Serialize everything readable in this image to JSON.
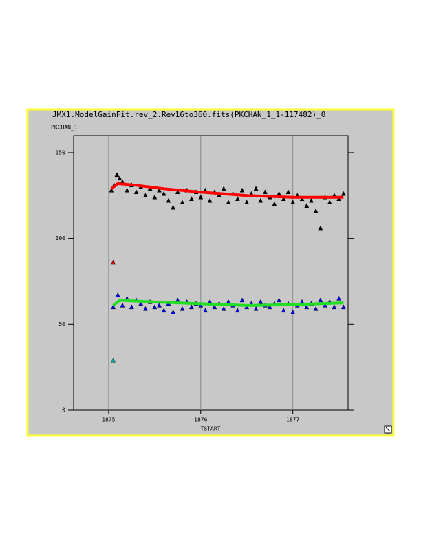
{
  "chart_data": {
    "type": "scatter",
    "title": "JMX1.ModelGainFit.rev_2.Rev16to360.fits(PKCHAN_1_1-117482)_0",
    "y_label": "PKCHAN_1",
    "x_label": "TSTART",
    "xlim": [
      1874.62,
      1877.6
    ],
    "ylim": [
      0,
      160
    ],
    "xticks": [
      1875,
      1876,
      1877
    ],
    "yticks": [
      0,
      50,
      100,
      150
    ],
    "grid": "x",
    "series": [
      {
        "mode": "markers",
        "color": "#000000",
        "x": [
          1875.03,
          1875.06,
          1875.09,
          1875.12,
          1875.15,
          1875.2,
          1875.25,
          1875.3,
          1875.35,
          1875.4,
          1875.45,
          1875.5,
          1875.55,
          1875.6,
          1875.65,
          1875.7,
          1875.75,
          1875.8,
          1875.85,
          1875.9,
          1875.95,
          1876.0,
          1876.05,
          1876.1,
          1876.15,
          1876.2,
          1876.25,
          1876.3,
          1876.35,
          1876.4,
          1876.45,
          1876.5,
          1876.55,
          1876.6,
          1876.65,
          1876.7,
          1876.75,
          1876.8,
          1876.85,
          1876.9,
          1876.95,
          1877.0,
          1877.05,
          1877.1,
          1877.15,
          1877.2,
          1877.25,
          1877.3,
          1877.35,
          1877.4,
          1877.45,
          1877.5,
          1877.55
        ],
        "values": [
          128,
          131,
          137,
          135,
          133,
          128,
          131,
          127,
          130,
          125,
          129,
          124,
          128,
          126,
          122,
          118,
          127,
          121,
          128,
          123,
          127,
          124,
          128,
          122,
          127,
          125,
          129,
          121,
          126,
          123,
          128,
          121,
          126,
          129,
          122,
          127,
          124,
          120,
          126,
          123,
          127,
          121,
          125,
          123,
          119,
          122,
          116,
          106,
          124,
          121,
          125,
          123,
          126
        ]
      },
      {
        "mode": "line",
        "color": "#ff0000",
        "x": [
          1875.03,
          1875.1,
          1875.3,
          1875.6,
          1876.0,
          1876.5,
          1877.0,
          1877.3,
          1877.55
        ],
        "values": [
          129,
          132,
          131,
          129,
          127,
          125,
          124,
          124,
          124
        ]
      },
      {
        "mode": "markers",
        "color": "#0000ff",
        "x": [
          1875.05,
          1875.1,
          1875.15,
          1875.2,
          1875.25,
          1875.3,
          1875.35,
          1875.4,
          1875.45,
          1875.5,
          1875.55,
          1875.6,
          1875.65,
          1875.7,
          1875.75,
          1875.8,
          1875.85,
          1875.9,
          1875.95,
          1876.0,
          1876.05,
          1876.1,
          1876.15,
          1876.2,
          1876.25,
          1876.3,
          1876.35,
          1876.4,
          1876.45,
          1876.5,
          1876.55,
          1876.6,
          1876.65,
          1876.7,
          1876.75,
          1876.8,
          1876.85,
          1876.9,
          1876.95,
          1877.0,
          1877.05,
          1877.1,
          1877.15,
          1877.2,
          1877.25,
          1877.3,
          1877.35,
          1877.4,
          1877.45,
          1877.5,
          1877.55
        ],
        "values": [
          60,
          67,
          61,
          65,
          60,
          64,
          62,
          59,
          63,
          60,
          61,
          58,
          62,
          57,
          64,
          59,
          63,
          60,
          62,
          61,
          58,
          63,
          60,
          62,
          59,
          63,
          61,
          58,
          64,
          60,
          62,
          59,
          63,
          61,
          60,
          62,
          64,
          58,
          62,
          57,
          61,
          63,
          60,
          62,
          59,
          64,
          61,
          63,
          60,
          65,
          60
        ]
      },
      {
        "mode": "line",
        "color": "#22dd22",
        "x": [
          1875.05,
          1875.12,
          1875.5,
          1876.0,
          1876.5,
          1877.0,
          1877.55
        ],
        "values": [
          61,
          64,
          63,
          62,
          61,
          61.5,
          62.5
        ]
      },
      {
        "mode": "markers",
        "color": "#dd0000",
        "x": [
          1875.05
        ],
        "values": [
          86
        ]
      },
      {
        "mode": "markers",
        "color": "#00bbbb",
        "x": [
          1875.05
        ],
        "values": [
          29
        ]
      }
    ]
  }
}
